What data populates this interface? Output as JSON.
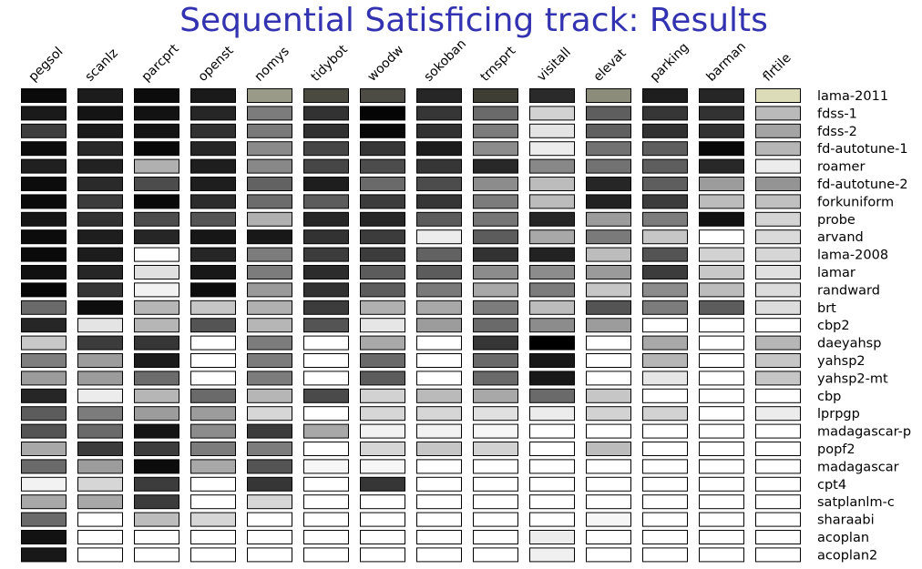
{
  "chart_data": {
    "type": "heatmap",
    "title": "Sequential Satisficing track: Results",
    "columns": [
      "pegsol",
      "scanlz",
      "parcprt",
      "openst",
      "nomys",
      "tidybot",
      "woodw",
      "sokoban",
      "trnsprt",
      "visitall",
      "elevat",
      "parking",
      "barman",
      "flrtile"
    ],
    "rows": [
      "lama-2011",
      "fdss-1",
      "fdss-2",
      "fd-autotune-1",
      "roamer",
      "fd-autotune-2",
      "forkuniform",
      "probe",
      "arvand",
      "lama-2008",
      "lamar",
      "randward",
      "brt",
      "cbp2",
      "daeyahsp",
      "yahsp2",
      "yahsp2-mt",
      "cbp",
      "lprpgp",
      "madagascar-p",
      "popf2",
      "madagascar",
      "cpt4",
      "satplanlm-c",
      "sharaabi",
      "acoplan",
      "acoplan2"
    ],
    "colors": {
      "lama-2011": [
        "#0a0a0a",
        "#1c1c1c",
        "#0c0c0c",
        "#1a1a1a",
        "#9a9a88",
        "#4a4a40",
        "#4c4c44",
        "#262626",
        "#3e3e34",
        "#2a2a2a",
        "#8c8c7a",
        "#1e1e1e",
        "#262626",
        "#dcdcb8"
      ],
      "fdss-1": [
        "#1a1a1a",
        "#141414",
        "#121212",
        "#262626",
        "#7c7c7c",
        "#323232",
        "#050505",
        "#363636",
        "#6a6a6a",
        "#d2d2d2",
        "#5e5e5e",
        "#363636",
        "#323232",
        "#bababa"
      ],
      "fdss-2": [
        "#3e3e3e",
        "#1c1c1c",
        "#141414",
        "#323232",
        "#7a7a7a",
        "#323232",
        "#080808",
        "#323232",
        "#7c7c7c",
        "#e4e4e4",
        "#606060",
        "#323232",
        "#323232",
        "#a4a4a4"
      ],
      "fd-autotune-1": [
        "#0c0c0c",
        "#282828",
        "#080808",
        "#262626",
        "#8a8a8a",
        "#464646",
        "#363636",
        "#1c1c1c",
        "#8c8c8c",
        "#ececec",
        "#727272",
        "#5e5e5e",
        "#080808",
        "#b6b6b6"
      ],
      "roamer": [
        "#202020",
        "#222222",
        "#b0b0b0",
        "#1e1e1e",
        "#888888",
        "#464646",
        "#4c4c4c",
        "#363636",
        "#282828",
        "#888888",
        "#727272",
        "#5e5e5e",
        "#282828",
        "#ececec"
      ],
      "fd-autotune-2": [
        "#0c0c0c",
        "#2a2a2a",
        "#4c4c4c",
        "#1e1e1e",
        "#626262",
        "#1e1e1e",
        "#6a6a6a",
        "#4c4c4c",
        "#8c8c8c",
        "#bcbcbc",
        "#262626",
        "#5e5e5e",
        "#9c9c9c",
        "#949494"
      ],
      "forkuniform": [
        "#0a0a0a",
        "#3c3c3c",
        "#080808",
        "#2c2c2c",
        "#6c6c6c",
        "#5c5c5c",
        "#3c3c3c",
        "#363636",
        "#7c7c7c",
        "#bcbcbc",
        "#222222",
        "#3c3c3c",
        "#bcbcbc",
        "#c0c0c0"
      ],
      "probe": [
        "#161616",
        "#323232",
        "#4c4c4c",
        "#545454",
        "#b0b0b0",
        "#262626",
        "#262626",
        "#5c5c5c",
        "#767676",
        "#262626",
        "#9c9c9c",
        "#7c7c7c",
        "#121212",
        "#d4d4d4"
      ],
      "arvand": [
        "#0c0c0c",
        "#1e1e1e",
        "#262626",
        "#161616",
        "#181818",
        "#323232",
        "#3c3c3c",
        "#ececec",
        "#5c5c5c",
        "#a8a8a8",
        "#7a7a7a",
        "#c6c6c6",
        "#ffffff",
        "#dadada"
      ],
      "lama-2008": [
        "#0a0a0a",
        "#1c1c1c",
        "#ffffff",
        "#262626",
        "#7c7c7c",
        "#3c3c3c",
        "#3c3c3c",
        "#626262",
        "#323232",
        "#222222",
        "#bcbcbc",
        "#545454",
        "#d2d2d2",
        "#d6d6d6"
      ],
      "lamar": [
        "#101010",
        "#262626",
        "#e0e0e0",
        "#181818",
        "#7c7c7c",
        "#2c2c2c",
        "#5c5c5c",
        "#5c5c5c",
        "#8c8c8c",
        "#8c8c8c",
        "#9a9a9a",
        "#3c3c3c",
        "#c8c8c8",
        "#e0e0e0"
      ],
      "randward": [
        "#060606",
        "#363636",
        "#f2f2f2",
        "#0c0c0c",
        "#9a9a9a",
        "#323232",
        "#5c5c5c",
        "#7a7a7a",
        "#a8a8a8",
        "#7c7c7c",
        "#c6c6c6",
        "#8c8c8c",
        "#bcbcbc",
        "#dcdcdc"
      ],
      "brt": [
        "#6a6a6a",
        "#0e0e0e",
        "#b6b6b6",
        "#c6c6c6",
        "#b0b0b0",
        "#3c3c3c",
        "#b0b0b0",
        "#a8a8a8",
        "#7c7c7c",
        "#bcbcbc",
        "#545454",
        "#7c7c7c",
        "#5c5c5c",
        "#dcdcdc"
      ],
      "cbp2": [
        "#262626",
        "#e4e4e4",
        "#b6b6b6",
        "#545454",
        "#b6b6b6",
        "#545454",
        "#e6e6e6",
        "#9c9c9c",
        "#6a6a6a",
        "#8c8c8c",
        "#9c9c9c",
        "#ffffff",
        "#ffffff",
        "#ffffff"
      ],
      "daeyahsp": [
        "#c8c8c8",
        "#3c3c3c",
        "#363636",
        "#ffffff",
        "#7c7c7c",
        "#ffffff",
        "#a8a8a8",
        "#ffffff",
        "#363636",
        "#000000",
        "#ffffff",
        "#a8a8a8",
        "#ffffff",
        "#b6b6b6"
      ],
      "yahsp2": [
        "#7e7e7e",
        "#9c9c9c",
        "#1c1c1c",
        "#ffffff",
        "#7c7c7c",
        "#ffffff",
        "#6a6a6a",
        "#ffffff",
        "#6a6a6a",
        "#181818",
        "#ffffff",
        "#b6b6b6",
        "#ffffff",
        "#c6c6c6"
      ],
      "yahsp2-mt": [
        "#9c9c9c",
        "#9c9c9c",
        "#6c6c6c",
        "#ffffff",
        "#7c7c7c",
        "#ffffff",
        "#5c5c5c",
        "#ffffff",
        "#6a6a6a",
        "#181818",
        "#ffffff",
        "#e6e6e6",
        "#ffffff",
        "#c6c6c6"
      ],
      "cbp": [
        "#262626",
        "#ececec",
        "#b6b6b6",
        "#6a6a6a",
        "#b6b6b6",
        "#4a4a4a",
        "#d2d2d2",
        "#bababa",
        "#a8a8a8",
        "#6a6a6a",
        "#c6c6c6",
        "#ffffff",
        "#ffffff",
        "#ffffff"
      ],
      "lprpgp": [
        "#5c5c5c",
        "#7c7c7c",
        "#9c9c9c",
        "#9c9c9c",
        "#d6d6d6",
        "#ffffff",
        "#d6d6d6",
        "#d6d6d6",
        "#e0e0e0",
        "#ececec",
        "#d2d2d2",
        "#d2d2d2",
        "#ffffff",
        "#ececec"
      ],
      "madagascar-p": [
        "#545454",
        "#6a6a6a",
        "#141414",
        "#8c8c8c",
        "#3c3c3c",
        "#a8a8a8",
        "#f2f2f2",
        "#f2f2f2",
        "#f6f6f6",
        "#ffffff",
        "#ffffff",
        "#ffffff",
        "#ffffff",
        "#ffffff"
      ],
      "popf2": [
        "#a8a8a8",
        "#3c3c3c",
        "#3c3c3c",
        "#7c7c7c",
        "#7c7c7c",
        "#ffffff",
        "#d6d6d6",
        "#c6c6c6",
        "#d2d2d2",
        "#ffffff",
        "#bcbcbc",
        "#ffffff",
        "#ffffff",
        "#ffffff"
      ],
      "madagascar": [
        "#6a6a6a",
        "#9c9c9c",
        "#0c0c0c",
        "#a8a8a8",
        "#545454",
        "#f6f6f6",
        "#f6f6f6",
        "#ffffff",
        "#ffffff",
        "#ffffff",
        "#ffffff",
        "#ffffff",
        "#ffffff",
        "#ffffff"
      ],
      "cpt4": [
        "#f2f2f2",
        "#d6d6d6",
        "#3c3c3c",
        "#ffffff",
        "#363636",
        "#ffffff",
        "#363636",
        "#ffffff",
        "#ffffff",
        "#ffffff",
        "#ffffff",
        "#ffffff",
        "#ffffff",
        "#ffffff"
      ],
      "satplanlm-c": [
        "#a8a8a8",
        "#a8a8a8",
        "#3c3c3c",
        "#ffffff",
        "#d6d6d6",
        "#ffffff",
        "#ffffff",
        "#ffffff",
        "#ffffff",
        "#ffffff",
        "#ffffff",
        "#ffffff",
        "#ffffff",
        "#ffffff"
      ],
      "sharaabi": [
        "#6a6a6a",
        "#ffffff",
        "#bcbcbc",
        "#d6d6d6",
        "#ffffff",
        "#ffffff",
        "#ffffff",
        "#ffffff",
        "#ffffff",
        "#ffffff",
        "#f6f6f6",
        "#ffffff",
        "#ffffff",
        "#ffffff"
      ],
      "acoplan": [
        "#121212",
        "#ffffff",
        "#ffffff",
        "#ffffff",
        "#ffffff",
        "#ffffff",
        "#ffffff",
        "#ffffff",
        "#ffffff",
        "#ececec",
        "#ffffff",
        "#ffffff",
        "#ffffff",
        "#ffffff"
      ],
      "acoplan2": [
        "#181818",
        "#ffffff",
        "#ffffff",
        "#ffffff",
        "#ffffff",
        "#ffffff",
        "#ffffff",
        "#ffffff",
        "#ffffff",
        "#f0f0f0",
        "#ffffff",
        "#ffffff",
        "#ffffff",
        "#ffffff"
      ]
    }
  }
}
